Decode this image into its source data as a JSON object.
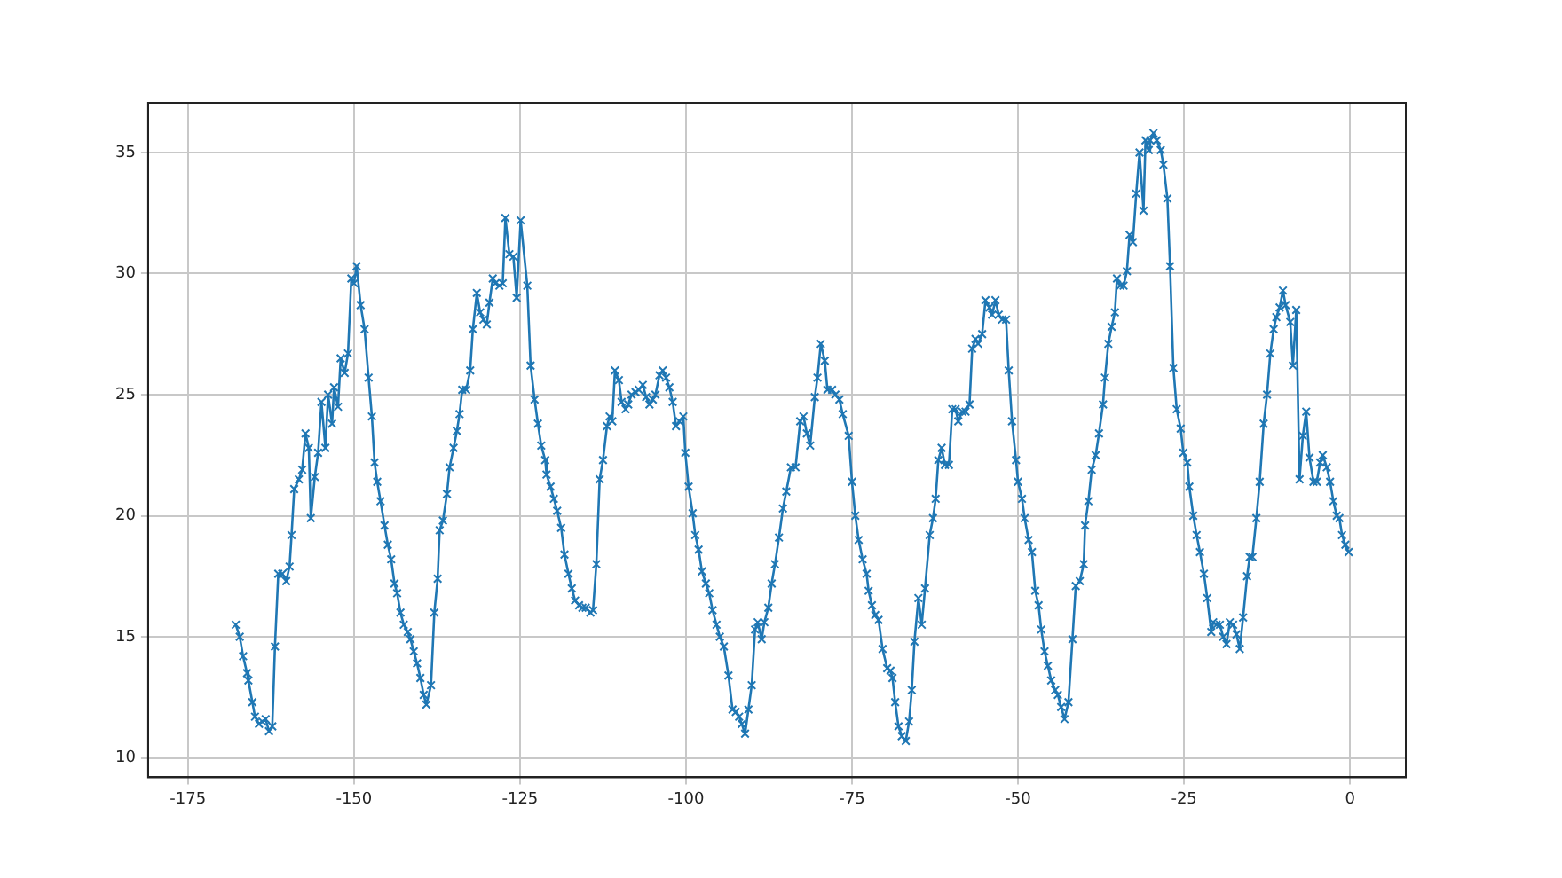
{
  "chart_data": {
    "type": "line",
    "xlim": [
      -181,
      8.4
    ],
    "ylim": [
      9.2,
      37.05
    ],
    "xticks": [
      -175,
      -150,
      -125,
      -100,
      -75,
      -50,
      -25,
      0
    ],
    "yticks": [
      10,
      15,
      20,
      25,
      30,
      35
    ],
    "grid": true,
    "marker": "cross",
    "line_style": "solid",
    "series": [
      {
        "color": "#1f77b4",
        "x": [
          -167.8,
          -167.2,
          -166.7,
          -166.1,
          -165.9,
          -165.3,
          -164.9,
          -164.3,
          -163.8,
          -163.3,
          -162.8,
          -162.3,
          -161.9,
          -161.4,
          -160.8,
          -160.2,
          -159.7,
          -159.4,
          -159.0,
          -158.3,
          -157.8,
          -157.3,
          -156.8,
          -156.5,
          -155.9,
          -155.4,
          -154.9,
          -154.3,
          -153.9,
          -153.3,
          -153.0,
          -152.4,
          -152.0,
          -151.4,
          -150.9,
          -150.4,
          -150.0,
          -149.6,
          -149.0,
          -148.4,
          -147.8,
          -147.3,
          -146.9,
          -146.5,
          -146.0,
          -145.4,
          -144.9,
          -144.4,
          -143.9,
          -143.5,
          -143.0,
          -142.5,
          -141.9,
          -141.5,
          -141.0,
          -140.5,
          -140.0,
          -139.5,
          -139.1,
          -138.4,
          -137.9,
          -137.4,
          -137.1,
          -136.6,
          -136.0,
          -135.6,
          -135.0,
          -134.5,
          -134.1,
          -133.7,
          -133.1,
          -132.5,
          -132.1,
          -131.5,
          -131.0,
          -130.5,
          -130.0,
          -129.6,
          -129.1,
          -128.7,
          -128.1,
          -127.6,
          -127.2,
          -126.6,
          -126.0,
          -125.5,
          -124.9,
          -123.9,
          -123.4,
          -122.8,
          -122.3,
          -121.8,
          -121.2,
          -121.0,
          -120.4,
          -119.9,
          -119.4,
          -118.8,
          -118.3,
          -117.7,
          -117.2,
          -116.7,
          -116.1,
          -115.6,
          -115.1,
          -114.4,
          -114.0,
          -113.5,
          -113.0,
          -112.5,
          -111.9,
          -111.5,
          -111.1,
          -110.7,
          -110.1,
          -109.7,
          -109.1,
          -108.7,
          -108.2,
          -107.6,
          -107.1,
          -106.5,
          -106.0,
          -105.5,
          -105.0,
          -104.6,
          -104.0,
          -103.5,
          -103.0,
          -102.5,
          -102.0,
          -101.5,
          -101.0,
          -100.4,
          -100.1,
          -99.6,
          -99.0,
          -98.6,
          -98.1,
          -97.6,
          -97.0,
          -96.5,
          -96.0,
          -95.4,
          -94.9,
          -94.3,
          -93.6,
          -93.0,
          -92.5,
          -92.0,
          -91.6,
          -91.1,
          -90.6,
          -90.1,
          -89.6,
          -89.2,
          -88.6,
          -88.2,
          -87.6,
          -87.1,
          -86.6,
          -86.0,
          -85.4,
          -84.9,
          -84.2,
          -83.5,
          -82.8,
          -82.3,
          -81.8,
          -81.3,
          -80.6,
          -80.2,
          -79.7,
          -79.1,
          -78.7,
          -78.0,
          -77.5,
          -76.9,
          -76.4,
          -75.5,
          -75.0,
          -74.5,
          -74.0,
          -73.4,
          -72.8,
          -72.5,
          -72.0,
          -71.5,
          -71.0,
          -70.4,
          -69.7,
          -69.2,
          -68.9,
          -68.5,
          -68.0,
          -67.5,
          -66.9,
          -66.4,
          -66.0,
          -65.6,
          -65.0,
          -64.5,
          -64.0,
          -63.3,
          -62.8,
          -62.4,
          -62.0,
          -61.5,
          -61.0,
          -60.4,
          -59.9,
          -59.4,
          -59.0,
          -58.4,
          -57.9,
          -57.3,
          -56.9,
          -56.4,
          -56.0,
          -55.4,
          -54.9,
          -54.3,
          -53.9,
          -53.4,
          -52.9,
          -52.4,
          -51.8,
          -51.4,
          -50.9,
          -50.3,
          -50.0,
          -49.4,
          -49.0,
          -48.4,
          -47.9,
          -47.4,
          -46.9,
          -46.5,
          -46.0,
          -45.5,
          -45.0,
          -44.4,
          -44.0,
          -43.5,
          -43.0,
          -42.4,
          -41.8,
          -41.3,
          -40.7,
          -40.1,
          -39.9,
          -39.4,
          -38.9,
          -38.3,
          -37.8,
          -37.2,
          -36.9,
          -36.4,
          -35.9,
          -35.4,
          -35.1,
          -34.6,
          -34.1,
          -33.6,
          -33.2,
          -32.7,
          -32.2,
          -31.7,
          -31.1,
          -30.8,
          -30.3,
          -30.1,
          -29.6,
          -29.1,
          -28.5,
          -28.1,
          -27.5,
          -27.1,
          -26.6,
          -26.1,
          -25.5,
          -25.1,
          -24.5,
          -24.2,
          -23.6,
          -23.1,
          -22.6,
          -22.0,
          -21.5,
          -20.9,
          -20.6,
          -20.1,
          -19.6,
          -19.1,
          -18.6,
          -18.1,
          -17.6,
          -17.1,
          -16.6,
          -16.1,
          -15.5,
          -15.1,
          -14.7,
          -14.1,
          -13.6,
          -13.0,
          -12.5,
          -12.0,
          -11.5,
          -11.1,
          -10.6,
          -10.1,
          -9.7,
          -9.0,
          -8.6,
          -8.1,
          -7.6,
          -7.1,
          -6.6,
          -6.1,
          -5.5,
          -5.0,
          -4.5,
          -4.1,
          -3.5,
          -3.0,
          -2.5,
          -2.0,
          -1.6,
          -1.2,
          -0.7,
          -0.2
        ],
        "values": [
          15.5,
          15.0,
          14.2,
          13.5,
          13.2,
          12.3,
          11.7,
          11.4,
          11.5,
          11.6,
          11.1,
          11.3,
          14.6,
          17.6,
          17.6,
          17.3,
          17.9,
          19.2,
          21.1,
          21.5,
          21.9,
          23.4,
          22.8,
          19.9,
          21.6,
          22.6,
          24.7,
          22.8,
          25.0,
          23.8,
          25.3,
          24.5,
          26.5,
          25.9,
          26.7,
          29.8,
          29.6,
          30.3,
          28.7,
          27.7,
          25.7,
          24.1,
          22.2,
          21.4,
          20.6,
          19.6,
          18.8,
          18.2,
          17.2,
          16.8,
          16.0,
          15.5,
          15.2,
          14.9,
          14.4,
          13.9,
          13.3,
          12.6,
          12.2,
          13.0,
          16.0,
          17.4,
          19.4,
          19.8,
          20.9,
          22.0,
          22.8,
          23.5,
          24.2,
          25.2,
          25.2,
          26.0,
          27.7,
          29.2,
          28.4,
          28.1,
          27.9,
          28.8,
          29.8,
          29.6,
          29.5,
          29.6,
          32.3,
          30.8,
          30.7,
          29.0,
          32.2,
          29.5,
          26.2,
          24.8,
          23.8,
          22.9,
          22.3,
          21.7,
          21.2,
          20.7,
          20.2,
          19.5,
          18.4,
          17.6,
          17.0,
          16.5,
          16.3,
          16.2,
          16.2,
          16.0,
          16.1,
          18.0,
          21.5,
          22.3,
          23.7,
          24.1,
          23.9,
          26.0,
          25.6,
          24.7,
          24.4,
          24.6,
          25.0,
          25.1,
          25.2,
          25.4,
          24.9,
          24.6,
          24.8,
          25.0,
          25.8,
          26.0,
          25.7,
          25.3,
          24.7,
          23.7,
          23.9,
          24.1,
          22.6,
          21.2,
          20.1,
          19.2,
          18.6,
          17.7,
          17.2,
          16.8,
          16.1,
          15.5,
          15.0,
          14.6,
          13.4,
          12.0,
          11.9,
          11.7,
          11.4,
          11.0,
          12.0,
          13.0,
          15.3,
          15.6,
          14.9,
          15.6,
          16.2,
          17.2,
          18.0,
          19.1,
          20.3,
          21.0,
          22.0,
          22.0,
          23.9,
          24.1,
          23.4,
          22.9,
          24.9,
          25.7,
          27.1,
          26.4,
          25.2,
          25.2,
          25.0,
          24.8,
          24.2,
          23.3,
          21.4,
          20.0,
          19.0,
          18.2,
          17.6,
          16.9,
          16.3,
          15.9,
          15.7,
          14.5,
          13.7,
          13.6,
          13.3,
          12.3,
          11.3,
          10.9,
          10.7,
          11.5,
          12.8,
          14.8,
          16.6,
          15.5,
          17.0,
          19.2,
          19.9,
          20.7,
          22.3,
          22.8,
          22.1,
          22.1,
          24.4,
          24.4,
          23.9,
          24.3,
          24.3,
          24.6,
          26.9,
          27.3,
          27.1,
          27.5,
          28.9,
          28.6,
          28.3,
          28.9,
          28.3,
          28.1,
          28.1,
          26.0,
          23.9,
          22.3,
          21.4,
          20.7,
          19.9,
          19.0,
          18.5,
          16.9,
          16.3,
          15.3,
          14.4,
          13.8,
          13.2,
          12.8,
          12.6,
          12.1,
          11.6,
          12.3,
          14.9,
          17.1,
          17.3,
          18.0,
          19.6,
          20.6,
          21.9,
          22.5,
          23.4,
          24.6,
          25.7,
          27.1,
          27.8,
          28.4,
          29.8,
          29.5,
          29.5,
          30.1,
          31.6,
          31.3,
          33.3,
          35.0,
          32.6,
          35.5,
          35.1,
          35.5,
          35.8,
          35.5,
          35.1,
          34.5,
          33.1,
          30.3,
          26.1,
          24.4,
          23.6,
          22.6,
          22.2,
          21.2,
          20.0,
          19.2,
          18.5,
          17.6,
          16.6,
          15.2,
          15.6,
          15.5,
          15.5,
          15.0,
          14.7,
          15.6,
          15.5,
          15.1,
          14.5,
          15.8,
          17.5,
          18.3,
          18.3,
          19.9,
          21.4,
          23.8,
          25.0,
          26.7,
          27.7,
          28.2,
          28.6,
          29.3,
          28.7,
          28.0,
          26.2,
          28.5,
          21.5,
          23.3,
          24.3,
          22.4,
          21.4,
          21.4,
          22.2,
          22.5,
          22.0,
          21.4,
          20.6,
          20.0,
          19.9,
          19.2,
          18.8,
          18.5
        ]
      }
    ]
  }
}
